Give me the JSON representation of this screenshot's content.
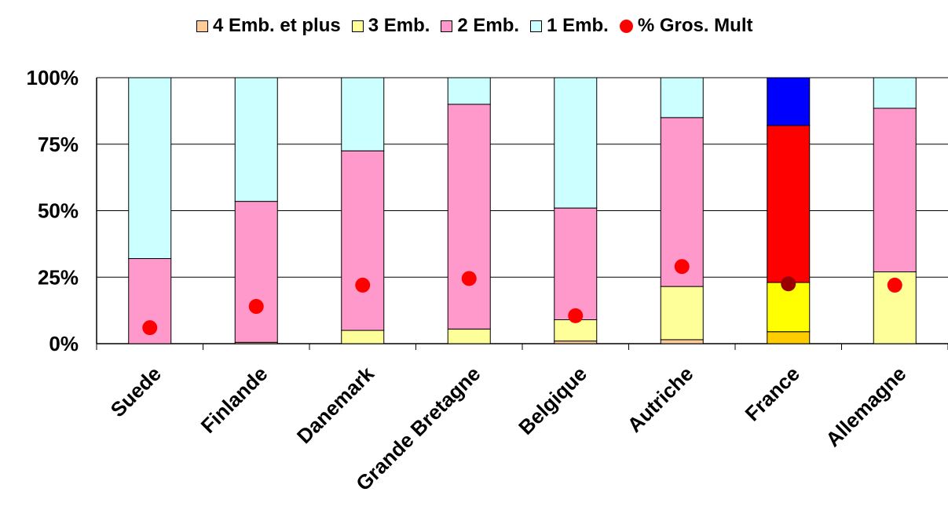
{
  "legend": {
    "items": [
      {
        "label": "4 Emb. et plus",
        "color": "#FFCC99",
        "kind": "swatch"
      },
      {
        "label": "3 Emb.",
        "color": "#FFFF99",
        "kind": "swatch"
      },
      {
        "label": "2 Emb.",
        "color": "#FF99CC",
        "kind": "swatch"
      },
      {
        "label": "1 Emb.",
        "color": "#CCFFFF",
        "kind": "swatch"
      },
      {
        "label": "% Gros. Mult",
        "color": "#FF0000",
        "kind": "marker"
      }
    ]
  },
  "chart_data": {
    "type": "bar",
    "stacked": true,
    "percent": true,
    "categories": [
      "Suede",
      "Finlande",
      "Danemark",
      "Grande Bretagne",
      "Belgique",
      "Autriche",
      "France",
      "Allemagne"
    ],
    "y_ticks": [
      "0%",
      "25%",
      "50%",
      "75%",
      "100%"
    ],
    "ylim": [
      0,
      100
    ],
    "grid": true,
    "legend_position": "top",
    "series": [
      {
        "name": "4 Emb. et plus",
        "color": "#FFCC99",
        "values": [
          0,
          0.5,
          0,
          0,
          1,
          1.5,
          4.5,
          0
        ]
      },
      {
        "name": "3 Emb.",
        "color": "#FFFF99",
        "values": [
          0,
          0,
          5,
          5.5,
          8,
          20,
          18.5,
          27
        ]
      },
      {
        "name": "2 Emb.",
        "color": "#FF99CC",
        "values": [
          32,
          53,
          67.5,
          84.5,
          42,
          63.5,
          59,
          61.5
        ]
      },
      {
        "name": "1 Emb.",
        "color": "#CCFFFF",
        "values": [
          68,
          46.5,
          27.5,
          10,
          49,
          15,
          18,
          11.5
        ]
      }
    ],
    "highlight": {
      "category": "France",
      "colors": [
        "#FFCC00",
        "#FFFF00",
        "#FF0000",
        "#0000FF"
      ],
      "marker_color": "#990000"
    },
    "marker_series": {
      "name": "% Gros. Mult",
      "color": "#FF0000",
      "values": [
        6,
        14,
        22,
        24.5,
        10.5,
        29,
        22.5,
        22
      ]
    }
  }
}
